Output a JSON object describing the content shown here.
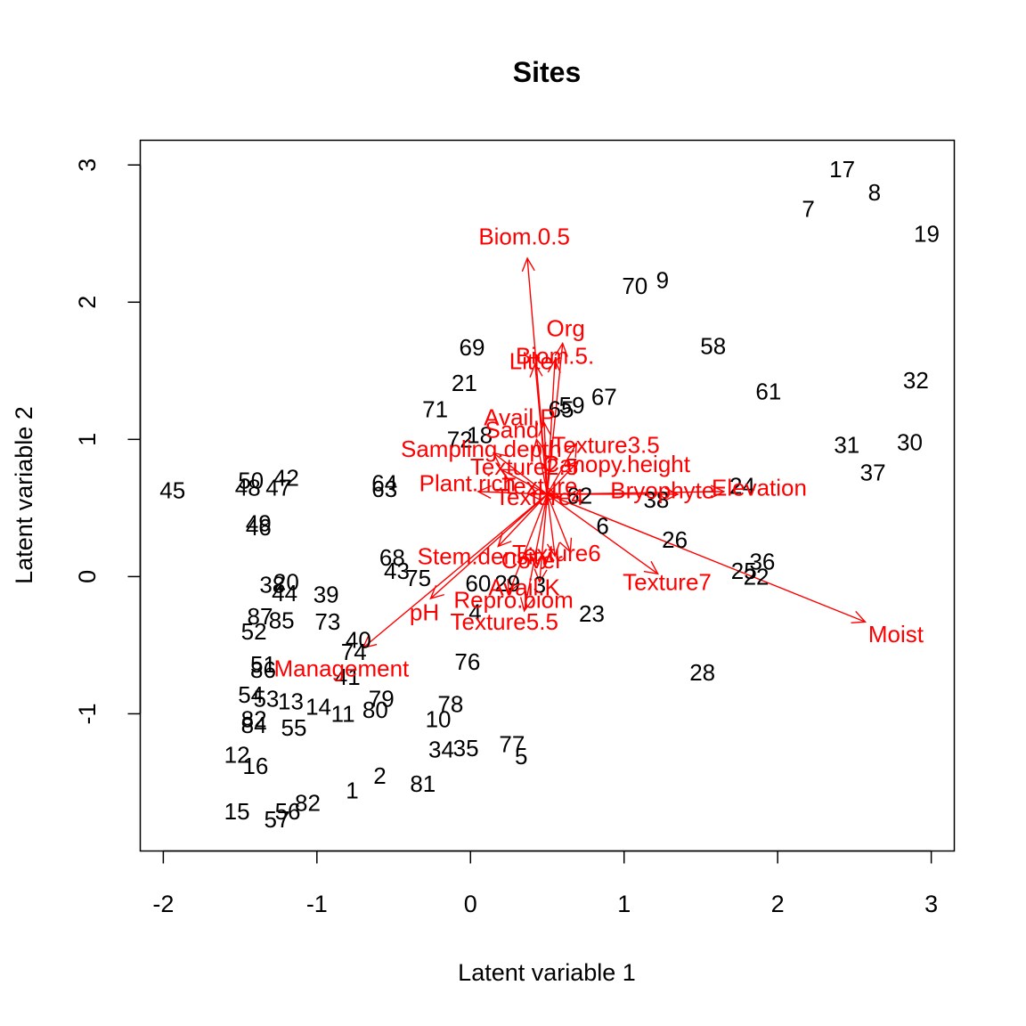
{
  "chart_data": {
    "type": "scatter",
    "title": "Sites",
    "xlabel": "Latent variable 1",
    "ylabel": "Latent variable 2",
    "xlim": [
      -2.15,
      3.15
    ],
    "ylim": [
      -2.0,
      3.18
    ],
    "x_ticks": [
      "-2",
      "-1",
      "0",
      "1",
      "2",
      "3"
    ],
    "y_ticks": [
      "-1",
      "0",
      "1",
      "2",
      "3"
    ],
    "arrow_color": "#ff0000",
    "arrow_origin": [
      0.5,
      0.6
    ],
    "sites": [
      {
        "label": "17",
        "x": 2.42,
        "y": 2.97
      },
      {
        "label": "8",
        "x": 2.63,
        "y": 2.8
      },
      {
        "label": "7",
        "x": 2.2,
        "y": 2.68
      },
      {
        "label": "19",
        "x": 2.97,
        "y": 2.5
      },
      {
        "label": "70",
        "x": 1.07,
        "y": 2.12
      },
      {
        "label": "9",
        "x": 1.25,
        "y": 2.16
      },
      {
        "label": "58",
        "x": 1.58,
        "y": 1.68
      },
      {
        "label": "61",
        "x": 1.94,
        "y": 1.35
      },
      {
        "label": "32",
        "x": 2.9,
        "y": 1.43
      },
      {
        "label": "31",
        "x": 2.45,
        "y": 0.96
      },
      {
        "label": "30",
        "x": 2.86,
        "y": 0.98
      },
      {
        "label": "37",
        "x": 2.62,
        "y": 0.76
      },
      {
        "label": "69",
        "x": 0.01,
        "y": 1.67
      },
      {
        "label": "21",
        "x": -0.04,
        "y": 1.41
      },
      {
        "label": "71",
        "x": -0.23,
        "y": 1.22
      },
      {
        "label": "67",
        "x": 0.87,
        "y": 1.31
      },
      {
        "label": "59",
        "x": 0.66,
        "y": 1.25
      },
      {
        "label": "65",
        "x": 0.59,
        "y": 1.22
      },
      {
        "label": "72",
        "x": -0.07,
        "y": 1.0
      },
      {
        "label": "18",
        "x": 0.06,
        "y": 1.03
      },
      {
        "label": "24",
        "x": 1.77,
        "y": 0.66
      },
      {
        "label": "38",
        "x": 1.21,
        "y": 0.56
      },
      {
        "label": "6",
        "x": 0.86,
        "y": 0.37
      },
      {
        "label": "62",
        "x": 0.71,
        "y": 0.59
      },
      {
        "label": "26",
        "x": 1.33,
        "y": 0.27
      },
      {
        "label": "36",
        "x": 1.9,
        "y": 0.11
      },
      {
        "label": "25",
        "x": 1.78,
        "y": 0.04
      },
      {
        "label": "22",
        "x": 1.86,
        "y": 0.0
      },
      {
        "label": "23",
        "x": 0.79,
        "y": -0.27
      },
      {
        "label": "28",
        "x": 1.51,
        "y": -0.7
      },
      {
        "label": "45",
        "x": -1.94,
        "y": 0.63
      },
      {
        "label": "50",
        "x": -1.43,
        "y": 0.7
      },
      {
        "label": "48",
        "x": -1.45,
        "y": 0.65
      },
      {
        "label": "42",
        "x": -1.2,
        "y": 0.72
      },
      {
        "label": "47",
        "x": -1.25,
        "y": 0.65
      },
      {
        "label": "64",
        "x": -0.56,
        "y": 0.68
      },
      {
        "label": "63",
        "x": -0.56,
        "y": 0.64
      },
      {
        "label": "49",
        "x": -1.38,
        "y": 0.39
      },
      {
        "label": "46",
        "x": -1.38,
        "y": 0.36
      },
      {
        "label": "68",
        "x": -0.51,
        "y": 0.14
      },
      {
        "label": "43",
        "x": -0.48,
        "y": 0.04
      },
      {
        "label": "75",
        "x": -0.34,
        "y": -0.01
      },
      {
        "label": "38",
        "x": -1.29,
        "y": -0.06
      },
      {
        "label": "20",
        "x": -1.2,
        "y": -0.04
      },
      {
        "label": "44",
        "x": -1.21,
        "y": -0.12
      },
      {
        "label": "39",
        "x": -0.94,
        "y": -0.13
      },
      {
        "label": "87",
        "x": -1.37,
        "y": -0.29
      },
      {
        "label": "85",
        "x": -1.23,
        "y": -0.32
      },
      {
        "label": "73",
        "x": -0.93,
        "y": -0.33
      },
      {
        "label": "52",
        "x": -1.41,
        "y": -0.4
      },
      {
        "label": "40",
        "x": -0.73,
        "y": -0.46
      },
      {
        "label": "74",
        "x": -0.76,
        "y": -0.55
      },
      {
        "label": "51",
        "x": -1.35,
        "y": -0.64
      },
      {
        "label": "86",
        "x": -1.35,
        "y": -0.68
      },
      {
        "label": "41",
        "x": -0.8,
        "y": -0.73
      },
      {
        "label": "60",
        "x": 0.05,
        "y": -0.05
      },
      {
        "label": "29",
        "x": 0.24,
        "y": -0.05
      },
      {
        "label": "3",
        "x": 0.45,
        "y": -0.06
      },
      {
        "label": "4",
        "x": 0.03,
        "y": -0.26
      },
      {
        "label": "76",
        "x": -0.02,
        "y": -0.62
      },
      {
        "label": "54",
        "x": -1.43,
        "y": -0.86
      },
      {
        "label": "53",
        "x": -1.33,
        "y": -0.89
      },
      {
        "label": "13",
        "x": -1.17,
        "y": -0.91
      },
      {
        "label": "14",
        "x": -0.99,
        "y": -0.95
      },
      {
        "label": "11",
        "x": -0.83,
        "y": -1.0
      },
      {
        "label": "80",
        "x": -0.62,
        "y": -0.97
      },
      {
        "label": "79",
        "x": -0.58,
        "y": -0.89
      },
      {
        "label": "78",
        "x": -0.13,
        "y": -0.93
      },
      {
        "label": "10",
        "x": -0.21,
        "y": -1.04
      },
      {
        "label": "82",
        "x": -1.41,
        "y": -1.04
      },
      {
        "label": "84",
        "x": -1.41,
        "y": -1.08
      },
      {
        "label": "55",
        "x": -1.15,
        "y": -1.1
      },
      {
        "label": "12",
        "x": -1.52,
        "y": -1.3
      },
      {
        "label": "16",
        "x": -1.4,
        "y": -1.38
      },
      {
        "label": "34",
        "x": -0.19,
        "y": -1.26
      },
      {
        "label": "35",
        "x": -0.03,
        "y": -1.25
      },
      {
        "label": "77",
        "x": 0.27,
        "y": -1.22
      },
      {
        "label": "5",
        "x": 0.33,
        "y": -1.31
      },
      {
        "label": "2",
        "x": -0.59,
        "y": -1.45
      },
      {
        "label": "81",
        "x": -0.31,
        "y": -1.51
      },
      {
        "label": "1",
        "x": -0.77,
        "y": -1.56
      },
      {
        "label": "82",
        "x": -1.06,
        "y": -1.65
      },
      {
        "label": "56",
        "x": -1.19,
        "y": -1.71
      },
      {
        "label": "57",
        "x": -1.26,
        "y": -1.77
      },
      {
        "label": "15",
        "x": -1.52,
        "y": -1.71
      }
    ],
    "variables": [
      {
        "label": "Biom.0.5",
        "x": 0.37,
        "y": 2.32,
        "lx": 0.35,
        "ly": 2.48
      },
      {
        "label": "Org",
        "x": 0.6,
        "y": 1.7,
        "lx": 0.62,
        "ly": 1.81
      },
      {
        "label": "Biom.5.",
        "x": 0.55,
        "y": 1.58,
        "lx": 0.55,
        "ly": 1.61
      },
      {
        "label": "Litter",
        "x": 0.42,
        "y": 1.55,
        "lx": 0.42,
        "ly": 1.57
      },
      {
        "label": "Avail.P",
        "x": 0.48,
        "y": 1.12,
        "lx": 0.32,
        "ly": 1.16
      },
      {
        "label": "Sand",
        "x": 0.43,
        "y": 1.0,
        "lx": 0.27,
        "ly": 1.07
      },
      {
        "label": "Texture3.5",
        "x": 0.69,
        "y": 0.97,
        "lx": 0.88,
        "ly": 0.96
      },
      {
        "label": "Sampling.depth",
        "x": 0.15,
        "y": 0.9,
        "lx": 0.07,
        "ly": 0.93
      },
      {
        "label": "Canopy.height",
        "x": 0.7,
        "y": 0.84,
        "lx": 0.95,
        "ly": 0.82
      },
      {
        "label": "Texture2.5",
        "x": 0.2,
        "y": 0.78,
        "lx": 0.35,
        "ly": 0.8
      },
      {
        "label": "Plant.rich",
        "x": 0.05,
        "y": 0.62,
        "lx": -0.02,
        "ly": 0.68
      },
      {
        "label": "Texture",
        "x": 0.38,
        "y": 0.6,
        "lx": 0.45,
        "ly": 0.66
      },
      {
        "label": "Bryophyte",
        "x": 1.35,
        "y": 0.6,
        "lx": 1.25,
        "ly": 0.63
      },
      {
        "label": "Elevation",
        "x": 1.65,
        "y": 0.62,
        "lx": 1.88,
        "ly": 0.65
      },
      {
        "label": "Texture4",
        "x": 0.58,
        "y": 0.58,
        "lx": 0.45,
        "ly": 0.58
      },
      {
        "label": "Stem.density",
        "x": 0.18,
        "y": 0.22,
        "lx": 0.09,
        "ly": 0.15
      },
      {
        "label": "Texture6",
        "x": 0.65,
        "y": 0.18,
        "lx": 0.56,
        "ly": 0.17
      },
      {
        "label": "Cover",
        "x": 0.55,
        "y": 0.15,
        "lx": 0.4,
        "ly": 0.12
      },
      {
        "label": "Texture7",
        "x": 1.22,
        "y": 0.02,
        "lx": 1.28,
        "ly": -0.04
      },
      {
        "label": "Avail.K",
        "x": 0.45,
        "y": -0.04,
        "lx": 0.35,
        "ly": -0.08
      },
      {
        "label": "Repro.biom",
        "x": 0.25,
        "y": -0.12,
        "lx": 0.28,
        "ly": -0.17
      },
      {
        "label": "pH",
        "x": -0.26,
        "y": -0.16,
        "lx": -0.3,
        "ly": -0.26
      },
      {
        "label": "Texture5.5",
        "x": 0.35,
        "y": -0.25,
        "lx": 0.22,
        "ly": -0.33
      },
      {
        "label": "Moist",
        "x": 2.57,
        "y": -0.33,
        "lx": 2.77,
        "ly": -0.42
      },
      {
        "label": "Management",
        "x": -0.7,
        "y": -0.52,
        "lx": -0.84,
        "ly": -0.67
      }
    ]
  }
}
